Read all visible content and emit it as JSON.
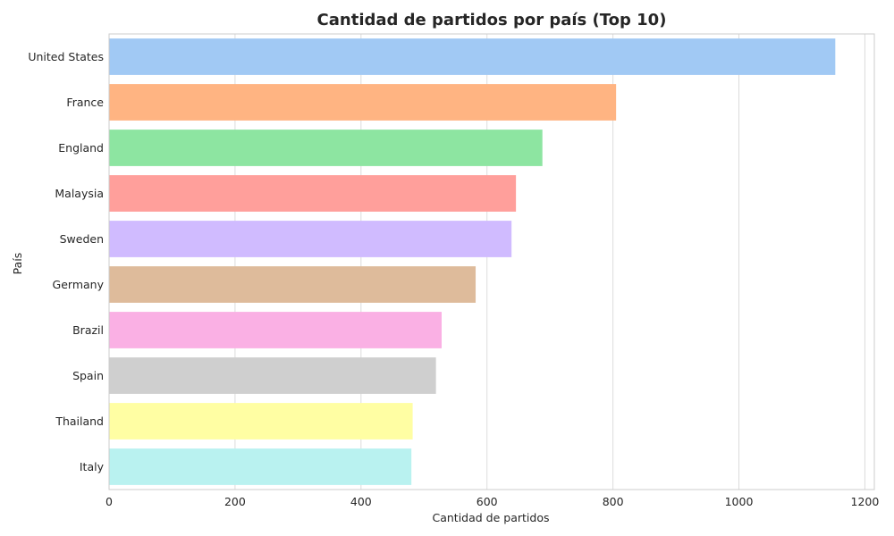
{
  "chart_data": {
    "type": "bar",
    "orientation": "horizontal",
    "title": "Cantidad de partidos por país (Top 10)",
    "xlabel": "Cantidad de partidos",
    "ylabel": "País",
    "categories": [
      "United States",
      "France",
      "England",
      "Malaysia",
      "Sweden",
      "Germany",
      "Brazil",
      "Spain",
      "Thailand",
      "Italy"
    ],
    "values": [
      1153,
      805,
      688,
      646,
      639,
      582,
      528,
      519,
      482,
      480
    ],
    "xlim": [
      0,
      1215
    ],
    "xticks": [
      "0",
      "200",
      "400",
      "600",
      "800",
      "1000",
      "1200"
    ],
    "xtick_values": [
      0,
      200,
      400,
      600,
      800,
      1000,
      1200
    ],
    "grid": true,
    "colors": [
      "#a1c9f4",
      "#ffb482",
      "#8de5a1",
      "#ff9f9b",
      "#d0bbff",
      "#debb9b",
      "#fab0e4",
      "#cfcfcf",
      "#fffea3",
      "#b9f2f0"
    ]
  }
}
